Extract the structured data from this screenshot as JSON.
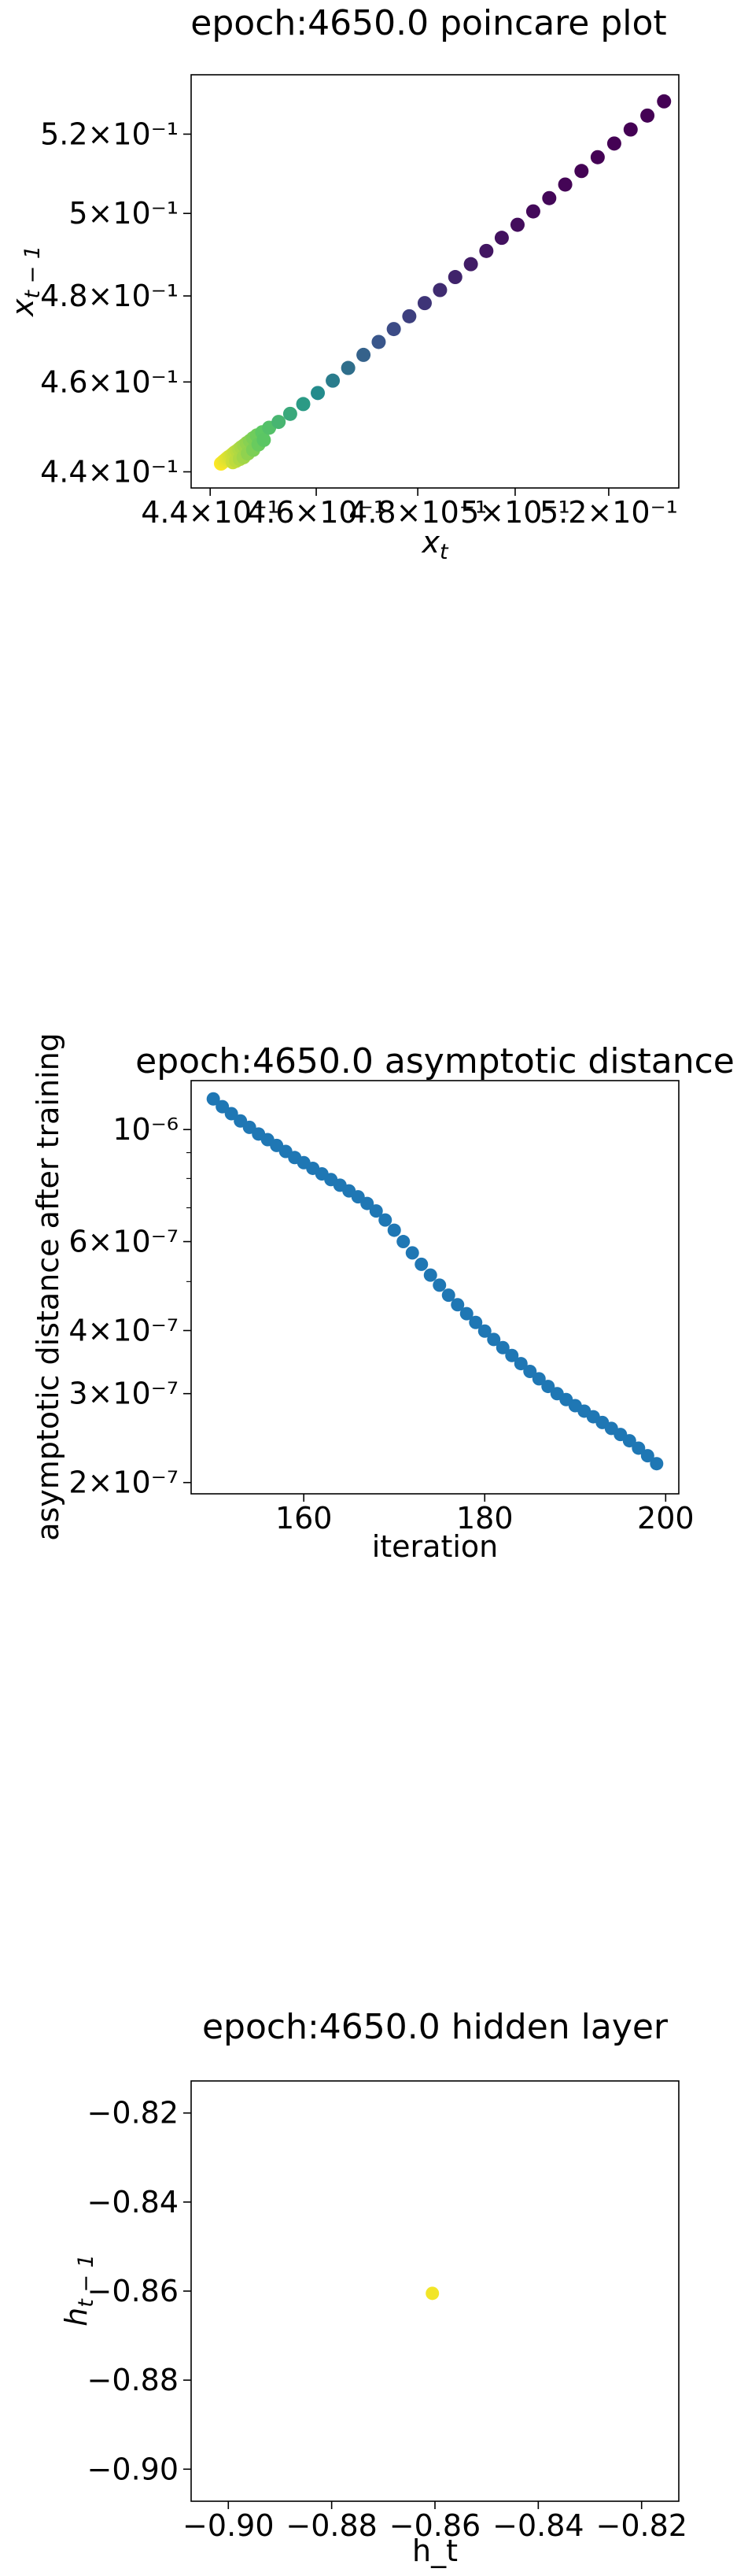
{
  "chart_data": [
    {
      "type": "scatter",
      "title": "epoch:4650.0 poincare plot",
      "xlabel": "x_t",
      "ylabel": "x_{t-1}",
      "xscale": "log",
      "yscale": "log",
      "xlim": [
        0.4365,
        0.5355
      ],
      "ylim": [
        0.4365,
        0.5355
      ],
      "xticks": [
        0.44,
        0.46,
        0.48,
        0.5,
        0.52
      ],
      "xtick_labels": [
        "4.4×10⁻¹",
        "4.6×10⁻¹",
        "4.8×10⁻¹",
        "5×10⁻¹",
        "5.2×10⁻¹"
      ],
      "yticks": [
        0.44,
        0.46,
        0.48,
        0.5,
        0.52
      ],
      "ytick_labels": [
        "4.4×10⁻¹",
        "4.6×10⁻¹",
        "4.8×10⁻¹",
        "5×10⁻¹",
        "5.2×10⁻¹"
      ],
      "colormap": "viridis",
      "grid": false,
      "points": [
        [
          0.442,
          0.4418
        ],
        [
          0.4422,
          0.442
        ],
        [
          0.4424,
          0.4422
        ],
        [
          0.4426,
          0.4424
        ],
        [
          0.4428,
          0.4426
        ],
        [
          0.443,
          0.4428
        ],
        [
          0.4432,
          0.443
        ],
        [
          0.4434,
          0.4432
        ],
        [
          0.4437,
          0.4434
        ],
        [
          0.444,
          0.4437
        ],
        [
          0.4443,
          0.444
        ],
        [
          0.4446,
          0.4443
        ],
        [
          0.445,
          0.4446
        ],
        [
          0.4454,
          0.445
        ],
        [
          0.4458,
          0.4454
        ],
        [
          0.4463,
          0.4458
        ],
        [
          0.4468,
          0.4463
        ],
        [
          0.4474,
          0.4468
        ],
        [
          0.448,
          0.4474
        ],
        [
          0.4487,
          0.448
        ],
        [
          0.4497,
          0.4487
        ],
        [
          0.451,
          0.4497
        ],
        [
          0.4528,
          0.451
        ],
        [
          0.455,
          0.4528
        ],
        [
          0.4575,
          0.455
        ],
        [
          0.4603,
          0.4575
        ],
        [
          0.4632,
          0.4603
        ],
        [
          0.4662,
          0.4632
        ],
        [
          0.4692,
          0.4662
        ],
        [
          0.4722,
          0.4692
        ],
        [
          0.4752,
          0.4722
        ],
        [
          0.4783,
          0.4752
        ],
        [
          0.4814,
          0.4783
        ],
        [
          0.4845,
          0.4814
        ],
        [
          0.4876,
          0.4845
        ],
        [
          0.4908,
          0.4876
        ],
        [
          0.494,
          0.4908
        ],
        [
          0.4972,
          0.494
        ],
        [
          0.5005,
          0.4972
        ],
        [
          0.5038,
          0.5005
        ],
        [
          0.5072,
          0.5038
        ],
        [
          0.5106,
          0.5072
        ],
        [
          0.5141,
          0.5106
        ],
        [
          0.5176,
          0.5141
        ],
        [
          0.5212,
          0.5176
        ],
        [
          0.5248,
          0.5212
        ],
        [
          0.5285,
          0.5248
        ],
        [
          0.5322,
          0.5285
        ],
        [
          0.45,
          0.447
        ],
        [
          0.449,
          0.446
        ],
        [
          0.448,
          0.4448
        ],
        [
          0.447,
          0.444
        ],
        [
          0.4462,
          0.4432
        ],
        [
          0.4455,
          0.4428
        ],
        [
          0.4448,
          0.4424
        ],
        [
          0.4442,
          0.4421
        ]
      ]
    },
    {
      "type": "scatter",
      "title": "epoch:4650.0 asymptotic distance",
      "xlabel": "iteration",
      "ylabel": "asymptotic distance after training",
      "yscale": "log",
      "xlim": [
        147.55,
        201.45
      ],
      "ylim": [
        1.9e-07,
        1.25e-06
      ],
      "xticks": [
        160,
        180,
        200
      ],
      "xtick_labels": [
        "160",
        "180",
        "200"
      ],
      "yticks": [
        2e-07,
        3e-07,
        4e-07,
        6e-07,
        1e-06
      ],
      "ytick_labels": [
        "2×10⁻⁷",
        "3×10⁻⁷",
        "4×10⁻⁷",
        "6×10⁻⁷",
        "10⁻⁶"
      ],
      "color": "#1f77b4",
      "grid": false,
      "x": [
        150,
        151,
        152,
        153,
        154,
        155,
        156,
        157,
        158,
        159,
        160,
        161,
        162,
        163,
        164,
        165,
        166,
        167,
        168,
        169,
        170,
        171,
        172,
        173,
        174,
        175,
        176,
        177,
        178,
        179,
        180,
        181,
        182,
        183,
        184,
        185,
        186,
        187,
        188,
        189,
        190,
        191,
        192,
        193,
        194,
        195,
        196,
        197,
        198,
        199
      ],
      "y": [
        1.15e-06,
        1.11e-06,
        1.075e-06,
        1.04e-06,
        1.01e-06,
        9.8e-07,
        9.55e-07,
        9.3e-07,
        9.05e-07,
        8.8e-07,
        8.6e-07,
        8.38e-07,
        8.17e-07,
        7.96e-07,
        7.76e-07,
        7.56e-07,
        7.36e-07,
        7.14e-07,
        6.9e-07,
        6.62e-07,
        6.32e-07,
        6e-07,
        5.7e-07,
        5.41e-07,
        5.15e-07,
        4.92e-07,
        4.7e-07,
        4.5e-07,
        4.32e-07,
        4.15e-07,
        3.99e-07,
        3.84e-07,
        3.7e-07,
        3.57e-07,
        3.44e-07,
        3.32e-07,
        3.21e-07,
        3.1e-07,
        3e-07,
        2.92e-07,
        2.84e-07,
        2.77e-07,
        2.7e-07,
        2.63e-07,
        2.56e-07,
        2.49e-07,
        2.42e-07,
        2.34e-07,
        2.26e-07,
        2.18e-07
      ]
    },
    {
      "type": "scatter",
      "title": "epoch:4650.0 hidden layer",
      "xlabel": "h_t",
      "ylabel": "h_{t-1}",
      "xlim": [
        -0.9072,
        -0.8128
      ],
      "ylim": [
        -0.9072,
        -0.8128
      ],
      "xticks": [
        -0.9,
        -0.88,
        -0.86,
        -0.84,
        -0.82
      ],
      "xtick_labels": [
        "−0.90",
        "−0.88",
        "−0.86",
        "−0.84",
        "−0.82"
      ],
      "yticks": [
        -0.9,
        -0.88,
        -0.86,
        -0.84,
        -0.82
      ],
      "ytick_labels": [
        "−0.90",
        "−0.88",
        "−0.86",
        "−0.84",
        "−0.82"
      ],
      "color": "#f2e527",
      "grid": false,
      "points": [
        [
          -0.8605,
          -0.8605
        ]
      ]
    }
  ]
}
